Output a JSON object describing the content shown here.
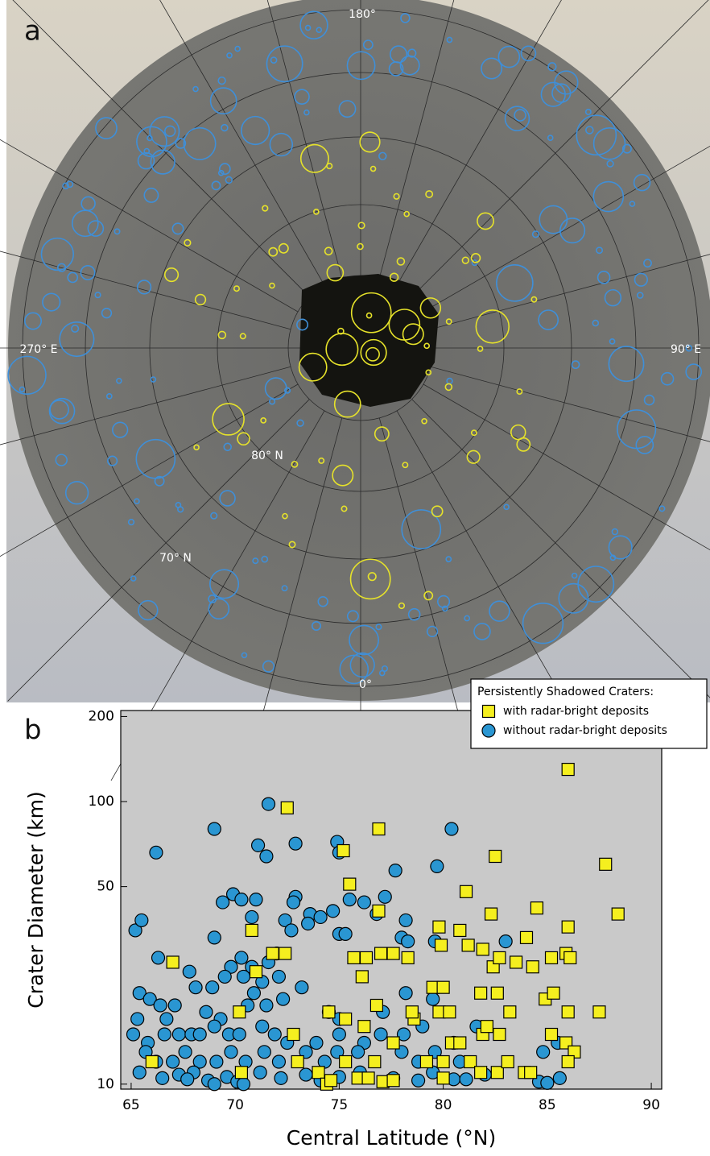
{
  "map": {
    "panel_label": "a",
    "labels": [
      "180°",
      "270° E",
      "90° E",
      "80° N",
      "70° N",
      "0°"
    ]
  },
  "chart_data": {
    "type": "scatter",
    "panel_label": "b",
    "xlabel": "Central Latitude (°N)",
    "ylabel": "Crater Diameter (km)",
    "xlim": [
      64.5,
      90.5
    ],
    "xticks": [
      65,
      70,
      75,
      80,
      85,
      90
    ],
    "ylim": [
      9.6,
      210
    ],
    "yticks": [
      10,
      50,
      100,
      200
    ],
    "log_y": true,
    "legend_title": "Persistently Shadowed Craters:",
    "legend": "upper right",
    "series": [
      {
        "name": "with radar-bright deposits",
        "color": "#f5ef1f",
        "marker": "square",
        "x": [
          86.0,
          72.5,
          76.9,
          75.2,
          82.5,
          75.5,
          81.1,
          84.5,
          87.8,
          88.4,
          82.3,
          76.9,
          79.8,
          80.8,
          86.0,
          70.8,
          67.0,
          71.8,
          72.4,
          75.7,
          76.3,
          77.0,
          77.6,
          78.3,
          79.9,
          81.2,
          81.9,
          82.4,
          82.7,
          83.5,
          84.0,
          84.3,
          85.2,
          85.9,
          86.1,
          76.1,
          79.5,
          80.0,
          79.8,
          80.3,
          81.8,
          82.6,
          83.2,
          84.9,
          85.3,
          86.0,
          87.5,
          70.2,
          71.0,
          74.5,
          75.3,
          76.2,
          76.8,
          78.6,
          78.5,
          77.6,
          80.4,
          80.8,
          81.9,
          82.1,
          82.7,
          85.2,
          85.9,
          86.3,
          86.0,
          66.0,
          70.3,
          72.8,
          73.0,
          75.3,
          76.7,
          79.2,
          80.0,
          81.3,
          81.8,
          82.6,
          83.1,
          83.9,
          84.2,
          74.0,
          74.4,
          75.9,
          76.4,
          77.1,
          77.6,
          80.0,
          74.6
        ],
        "values": [
          130,
          95,
          80,
          67,
          64,
          51,
          48,
          42,
          60,
          40,
          40,
          41,
          36,
          35,
          36,
          35,
          27,
          29,
          29,
          28,
          28,
          29,
          29,
          28,
          31,
          31,
          30,
          26,
          28,
          27,
          33,
          26,
          28,
          29,
          28,
          24,
          22,
          22,
          18,
          18,
          21,
          21,
          18,
          20,
          21,
          18,
          18,
          18,
          25,
          18,
          17,
          16,
          19,
          17,
          18,
          14,
          14,
          14,
          15,
          16,
          15,
          15,
          14,
          13,
          12,
          12,
          11,
          15,
          12,
          12,
          12,
          12,
          12,
          12,
          11,
          11,
          12,
          11,
          11,
          11,
          10,
          10.5,
          10.5,
          10.2,
          10.3,
          10.5,
          10.3
        ]
      },
      {
        "name": "without radar-bright deposits",
        "color": "#2a96d2",
        "marker": "circle",
        "x": [
          71.6,
          69.0,
          66.2,
          71.1,
          72.9,
          71.5,
          74.9,
          80.4,
          79.7,
          77.7,
          75.0,
          69.4,
          69.9,
          70.3,
          71.0,
          72.9,
          72.8,
          73.6,
          74.1,
          74.7,
          75.5,
          76.2,
          77.2,
          76.8,
          78.2,
          70.8,
          72.4,
          72.7,
          73.5,
          75.0,
          75.3,
          65.2,
          65.5,
          69.0,
          78.0,
          78.3,
          79.6,
          83.0,
          66.3,
          67.8,
          69.8,
          70.3,
          70.8,
          71.6,
          72.0,
          68.1,
          68.9,
          69.5,
          70.4,
          70.9,
          71.3,
          72.1,
          72.3,
          73.2,
          65.4,
          65.9,
          66.4,
          67.1,
          65.3,
          66.7,
          68.6,
          69.3,
          70.6,
          71.5,
          74.5,
          75.0,
          77.1,
          78.2,
          79.5,
          65.1,
          65.8,
          66.6,
          67.3,
          67.9,
          68.3,
          69.0,
          69.7,
          70.2,
          71.3,
          71.9,
          72.5,
          73.9,
          75.0,
          76.2,
          77.0,
          78.1,
          79.0,
          80.5,
          81.6,
          65.7,
          66.2,
          67.0,
          67.6,
          68.3,
          69.1,
          69.8,
          70.5,
          71.4,
          72.1,
          73.4,
          74.3,
          74.9,
          75.9,
          78.0,
          78.8,
          79.6,
          80.8,
          84.8,
          85.5,
          65.4,
          66.5,
          67.3,
          68.0,
          68.7,
          69.6,
          70.1,
          71.2,
          72.2,
          73.4,
          74.1,
          75.0,
          76.0,
          77.6,
          78.8,
          79.5,
          80.5,
          81.1,
          82.0,
          84.6,
          85.0,
          85.6,
          67.7,
          69.0,
          70.4
        ],
        "values": [
          98,
          80,
          66,
          70,
          71,
          64,
          72,
          80,
          59,
          57,
          66,
          44,
          47,
          45,
          45,
          46,
          44,
          40,
          39,
          41,
          45,
          44,
          46,
          40,
          38,
          39,
          38,
          35,
          37,
          34,
          34,
          35,
          38,
          33,
          33,
          32,
          32,
          32,
          28,
          25,
          26,
          28,
          26,
          27,
          29,
          22,
          22,
          24,
          24,
          21,
          23,
          24,
          20,
          22,
          21,
          20,
          19,
          19,
          17,
          17,
          18,
          17,
          19,
          19,
          18,
          17,
          18,
          21,
          20,
          15,
          14,
          15,
          15,
          15,
          15,
          16,
          15,
          15,
          16,
          15,
          14,
          14,
          15,
          14,
          15,
          15,
          16,
          14,
          16,
          13,
          12,
          12,
          13,
          12,
          12,
          13,
          12,
          13,
          12,
          13,
          12,
          13,
          13,
          13,
          12,
          13,
          12,
          13,
          14,
          11,
          10.5,
          10.8,
          11,
          10.3,
          10.6,
          10.2,
          11,
          10.5,
          10.8,
          10.3,
          10.6,
          11,
          10.5,
          10.3,
          11,
          10.4,
          10.4,
          10.8,
          10.2,
          10.1,
          10.5,
          10.4,
          10.0,
          10.0
        ]
      }
    ]
  }
}
